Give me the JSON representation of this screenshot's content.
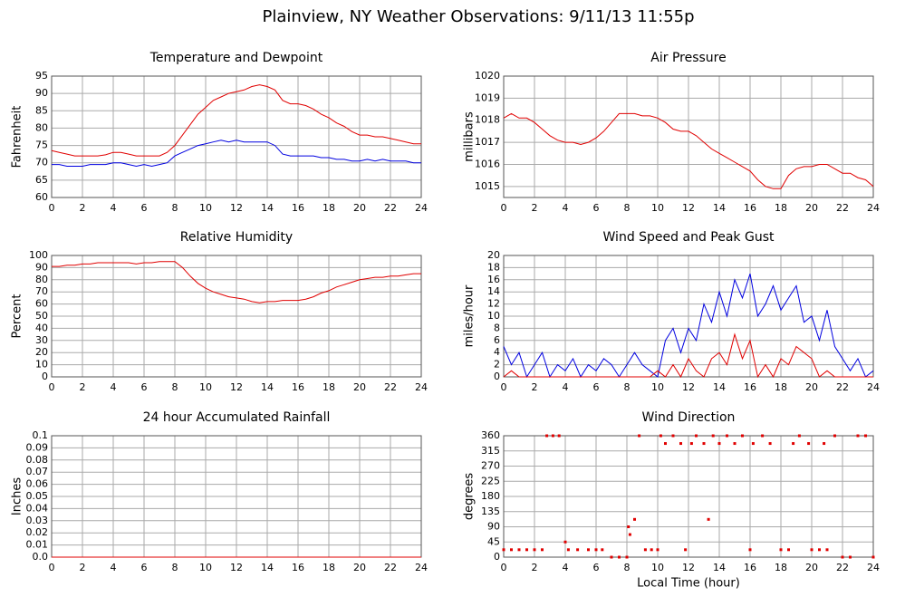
{
  "title": "Plainview, NY Weather Observations: 9/11/13 11:55p",
  "chart_data": [
    {
      "type": "line",
      "title": "Temperature and Dewpoint",
      "ylabel": "Fahrenheit",
      "x": [
        0,
        0.5,
        1,
        1.5,
        2,
        2.5,
        3,
        3.5,
        4,
        4.5,
        5,
        5.5,
        6,
        6.5,
        7,
        7.5,
        8,
        8.5,
        9,
        9.5,
        10,
        10.5,
        11,
        11.5,
        12,
        12.5,
        13,
        13.5,
        14,
        14.5,
        15,
        15.5,
        16,
        16.5,
        17,
        17.5,
        18,
        18.5,
        19,
        19.5,
        20,
        20.5,
        21,
        21.5,
        22,
        22.5,
        23,
        23.5,
        24
      ],
      "series": [
        {
          "color": "#e00000",
          "values": [
            73.5,
            73,
            72.5,
            72,
            72,
            72,
            72,
            72.3,
            73,
            73,
            72.5,
            72,
            72,
            72,
            72,
            73,
            75,
            78,
            81,
            84,
            86,
            88,
            89,
            90,
            90.5,
            91,
            92,
            92.5,
            92,
            91,
            88,
            87,
            87,
            86.5,
            85.5,
            84,
            83,
            81.5,
            80.5,
            79,
            78,
            78,
            77.5,
            77.5,
            77,
            76.5,
            76,
            75.5,
            75.5
          ]
        },
        {
          "color": "#0000e0",
          "values": [
            69.5,
            69.5,
            69,
            69,
            69,
            69.5,
            69.5,
            69.5,
            70,
            70,
            69.5,
            69,
            69.5,
            69,
            69.5,
            70,
            72,
            73,
            74,
            75,
            75.5,
            76,
            76.5,
            76,
            76.5,
            76,
            76,
            76,
            76,
            75,
            72.5,
            72,
            72,
            72,
            72,
            71.5,
            71.5,
            71,
            71,
            70.5,
            70.5,
            71,
            70.5,
            71,
            70.5,
            70.5,
            70.5,
            70,
            70
          ]
        }
      ],
      "xlim": [
        0,
        24
      ],
      "xticks": [
        0,
        2,
        4,
        6,
        8,
        10,
        12,
        14,
        16,
        18,
        20,
        22,
        24
      ],
      "ylim": [
        60,
        95
      ],
      "yticks": [
        60,
        65,
        70,
        75,
        80,
        85,
        90,
        95
      ],
      "grid": true
    },
    {
      "type": "line",
      "title": "Air Pressure",
      "ylabel": "millibars",
      "x": [
        0,
        0.5,
        1,
        1.5,
        2,
        2.5,
        3,
        3.5,
        4,
        4.5,
        5,
        5.5,
        6,
        6.5,
        7,
        7.5,
        8,
        8.5,
        9,
        9.5,
        10,
        10.5,
        11,
        11.5,
        12,
        12.5,
        13,
        13.5,
        14,
        14.5,
        15,
        15.5,
        16,
        16.5,
        17,
        17.5,
        18,
        18.5,
        19,
        19.5,
        20,
        20.5,
        21,
        21.5,
        22,
        22.5,
        23,
        23.5,
        24
      ],
      "series": [
        {
          "color": "#e00000",
          "values": [
            1018.1,
            1018.3,
            1018.1,
            1018.1,
            1017.9,
            1017.6,
            1017.3,
            1017.1,
            1017.0,
            1017.0,
            1016.9,
            1017.0,
            1017.2,
            1017.5,
            1017.9,
            1018.3,
            1018.3,
            1018.3,
            1018.2,
            1018.2,
            1018.1,
            1017.9,
            1017.6,
            1017.5,
            1017.5,
            1017.3,
            1017.0,
            1016.7,
            1016.5,
            1016.3,
            1016.1,
            1015.9,
            1015.7,
            1015.3,
            1015.0,
            1014.9,
            1014.9,
            1015.5,
            1015.8,
            1015.9,
            1015.9,
            1016.0,
            1016.0,
            1015.8,
            1015.6,
            1015.6,
            1015.4,
            1015.3,
            1015.0
          ]
        }
      ],
      "xlim": [
        0,
        24
      ],
      "xticks": [
        0,
        2,
        4,
        6,
        8,
        10,
        12,
        14,
        16,
        18,
        20,
        22,
        24
      ],
      "ylim": [
        1014.5,
        1020
      ],
      "yticks": [
        1015,
        1016,
        1017,
        1018,
        1019,
        1020
      ],
      "grid": true
    },
    {
      "type": "line",
      "title": "Relative Humidity",
      "ylabel": "Percent",
      "x": [
        0,
        0.5,
        1,
        1.5,
        2,
        2.5,
        3,
        3.5,
        4,
        4.5,
        5,
        5.5,
        6,
        6.5,
        7,
        7.5,
        8,
        8.5,
        9,
        9.5,
        10,
        10.5,
        11,
        11.5,
        12,
        12.5,
        13,
        13.5,
        14,
        14.5,
        15,
        15.5,
        16,
        16.5,
        17,
        17.5,
        18,
        18.5,
        19,
        19.5,
        20,
        20.5,
        21,
        21.5,
        22,
        22.5,
        23,
        23.5,
        24
      ],
      "series": [
        {
          "color": "#e00000",
          "values": [
            91,
            91,
            92,
            92,
            93,
            93,
            94,
            94,
            94,
            94,
            94,
            93,
            94,
            94,
            95,
            95,
            95,
            90,
            83,
            77,
            73,
            70,
            68,
            66,
            65,
            64,
            62,
            61,
            62,
            62,
            63,
            63,
            63,
            64,
            66,
            69,
            71,
            74,
            76,
            78,
            80,
            81,
            82,
            82,
            83,
            83,
            84,
            85,
            85
          ]
        }
      ],
      "xlim": [
        0,
        24
      ],
      "xticks": [
        0,
        2,
        4,
        6,
        8,
        10,
        12,
        14,
        16,
        18,
        20,
        22,
        24
      ],
      "ylim": [
        0,
        100
      ],
      "yticks": [
        0,
        10,
        20,
        30,
        40,
        50,
        60,
        70,
        80,
        90,
        100
      ],
      "grid": true
    },
    {
      "type": "line",
      "title": "Wind Speed and Peak Gust",
      "ylabel": "miles/hour",
      "x": [
        0,
        0.5,
        1,
        1.5,
        2,
        2.5,
        3,
        3.5,
        4,
        4.5,
        5,
        5.5,
        6,
        6.5,
        7,
        7.5,
        8,
        8.5,
        9,
        9.5,
        10,
        10.5,
        11,
        11.5,
        12,
        12.5,
        13,
        13.5,
        14,
        14.5,
        15,
        15.5,
        16,
        16.5,
        17,
        17.5,
        18,
        18.5,
        19,
        19.5,
        20,
        20.5,
        21,
        21.5,
        22,
        22.5,
        23,
        23.5,
        24
      ],
      "series": [
        {
          "color": "#0000e0",
          "values": [
            5,
            2,
            4,
            0,
            2,
            4,
            0,
            2,
            1,
            3,
            0,
            2,
            1,
            3,
            2,
            0,
            2,
            4,
            2,
            1,
            0,
            6,
            8,
            4,
            8,
            6,
            12,
            9,
            14,
            10,
            16,
            13,
            17,
            10,
            12,
            15,
            11,
            13,
            15,
            9,
            10,
            6,
            11,
            5,
            3,
            1,
            3,
            0,
            1
          ]
        },
        {
          "color": "#e00000",
          "values": [
            0,
            1,
            0,
            0,
            0,
            0,
            0,
            0,
            0,
            0,
            0,
            0,
            0,
            0,
            0,
            0,
            0,
            0,
            0,
            0,
            1,
            0,
            2,
            0,
            3,
            1,
            0,
            3,
            4,
            2,
            7,
            3,
            6,
            0,
            2,
            0,
            3,
            2,
            5,
            4,
            3,
            0,
            1,
            0,
            0,
            0,
            0,
            0,
            0
          ]
        }
      ],
      "xlim": [
        0,
        24
      ],
      "xticks": [
        0,
        2,
        4,
        6,
        8,
        10,
        12,
        14,
        16,
        18,
        20,
        22,
        24
      ],
      "ylim": [
        0,
        20
      ],
      "yticks": [
        0,
        2,
        4,
        6,
        8,
        10,
        12,
        14,
        16,
        18,
        20
      ],
      "grid": true
    },
    {
      "type": "line",
      "title": "24 hour Accumulated Rainfall",
      "ylabel": "Inches",
      "x": [
        0,
        24
      ],
      "series": [
        {
          "color": "#e00000",
          "values": [
            0,
            0
          ]
        }
      ],
      "xlim": [
        0,
        24
      ],
      "xticks": [
        0,
        2,
        4,
        6,
        8,
        10,
        12,
        14,
        16,
        18,
        20,
        22,
        24
      ],
      "ylim": [
        0,
        0.1
      ],
      "yticks": [
        {
          "value": 0,
          "label": "0.0"
        },
        0.01,
        0.02,
        0.03,
        0.04,
        0.05,
        0.06,
        0.07,
        0.08,
        0.09,
        0.1
      ],
      "grid": true
    },
    {
      "type": "scatter",
      "title": "Wind Direction",
      "ylabel": "degrees",
      "xlabel": "Local Time (hour)",
      "color": "#e00000",
      "x": [
        0,
        0.5,
        1,
        1.5,
        2,
        2.5,
        2.8,
        3.2,
        3.6,
        4,
        4.2,
        4.8,
        5.5,
        6,
        6.4,
        7,
        7.5,
        8,
        8.1,
        8.2,
        8.5,
        8.8,
        9.2,
        9.6,
        10,
        10.2,
        10.5,
        11,
        11.5,
        11.8,
        12.2,
        12.5,
        13,
        13.3,
        13.6,
        14,
        14.5,
        15,
        15.5,
        16,
        16.2,
        16.8,
        17.3,
        18,
        18.5,
        18.8,
        19.2,
        19.8,
        20,
        20.5,
        20.8,
        21,
        21.5,
        22,
        22.5,
        23,
        23.5,
        24
      ],
      "values": [
        22,
        22,
        22,
        22,
        22,
        22,
        360,
        360,
        360,
        45,
        22,
        22,
        22,
        22,
        22,
        0,
        0,
        0,
        90,
        67,
        112,
        360,
        22,
        22,
        22,
        360,
        337,
        360,
        337,
        22,
        337,
        360,
        337,
        112,
        360,
        337,
        360,
        337,
        360,
        22,
        337,
        360,
        337,
        22,
        22,
        337,
        360,
        337,
        22,
        22,
        337,
        22,
        360,
        0,
        0,
        360,
        360,
        0
      ],
      "xlim": [
        0,
        24
      ],
      "xticks": [
        0,
        2,
        4,
        6,
        8,
        10,
        12,
        14,
        16,
        18,
        20,
        22,
        24
      ],
      "ylim": [
        0,
        360
      ],
      "yticks": [
        0,
        45,
        90,
        135,
        180,
        225,
        270,
        315,
        360
      ],
      "grid": true
    }
  ]
}
